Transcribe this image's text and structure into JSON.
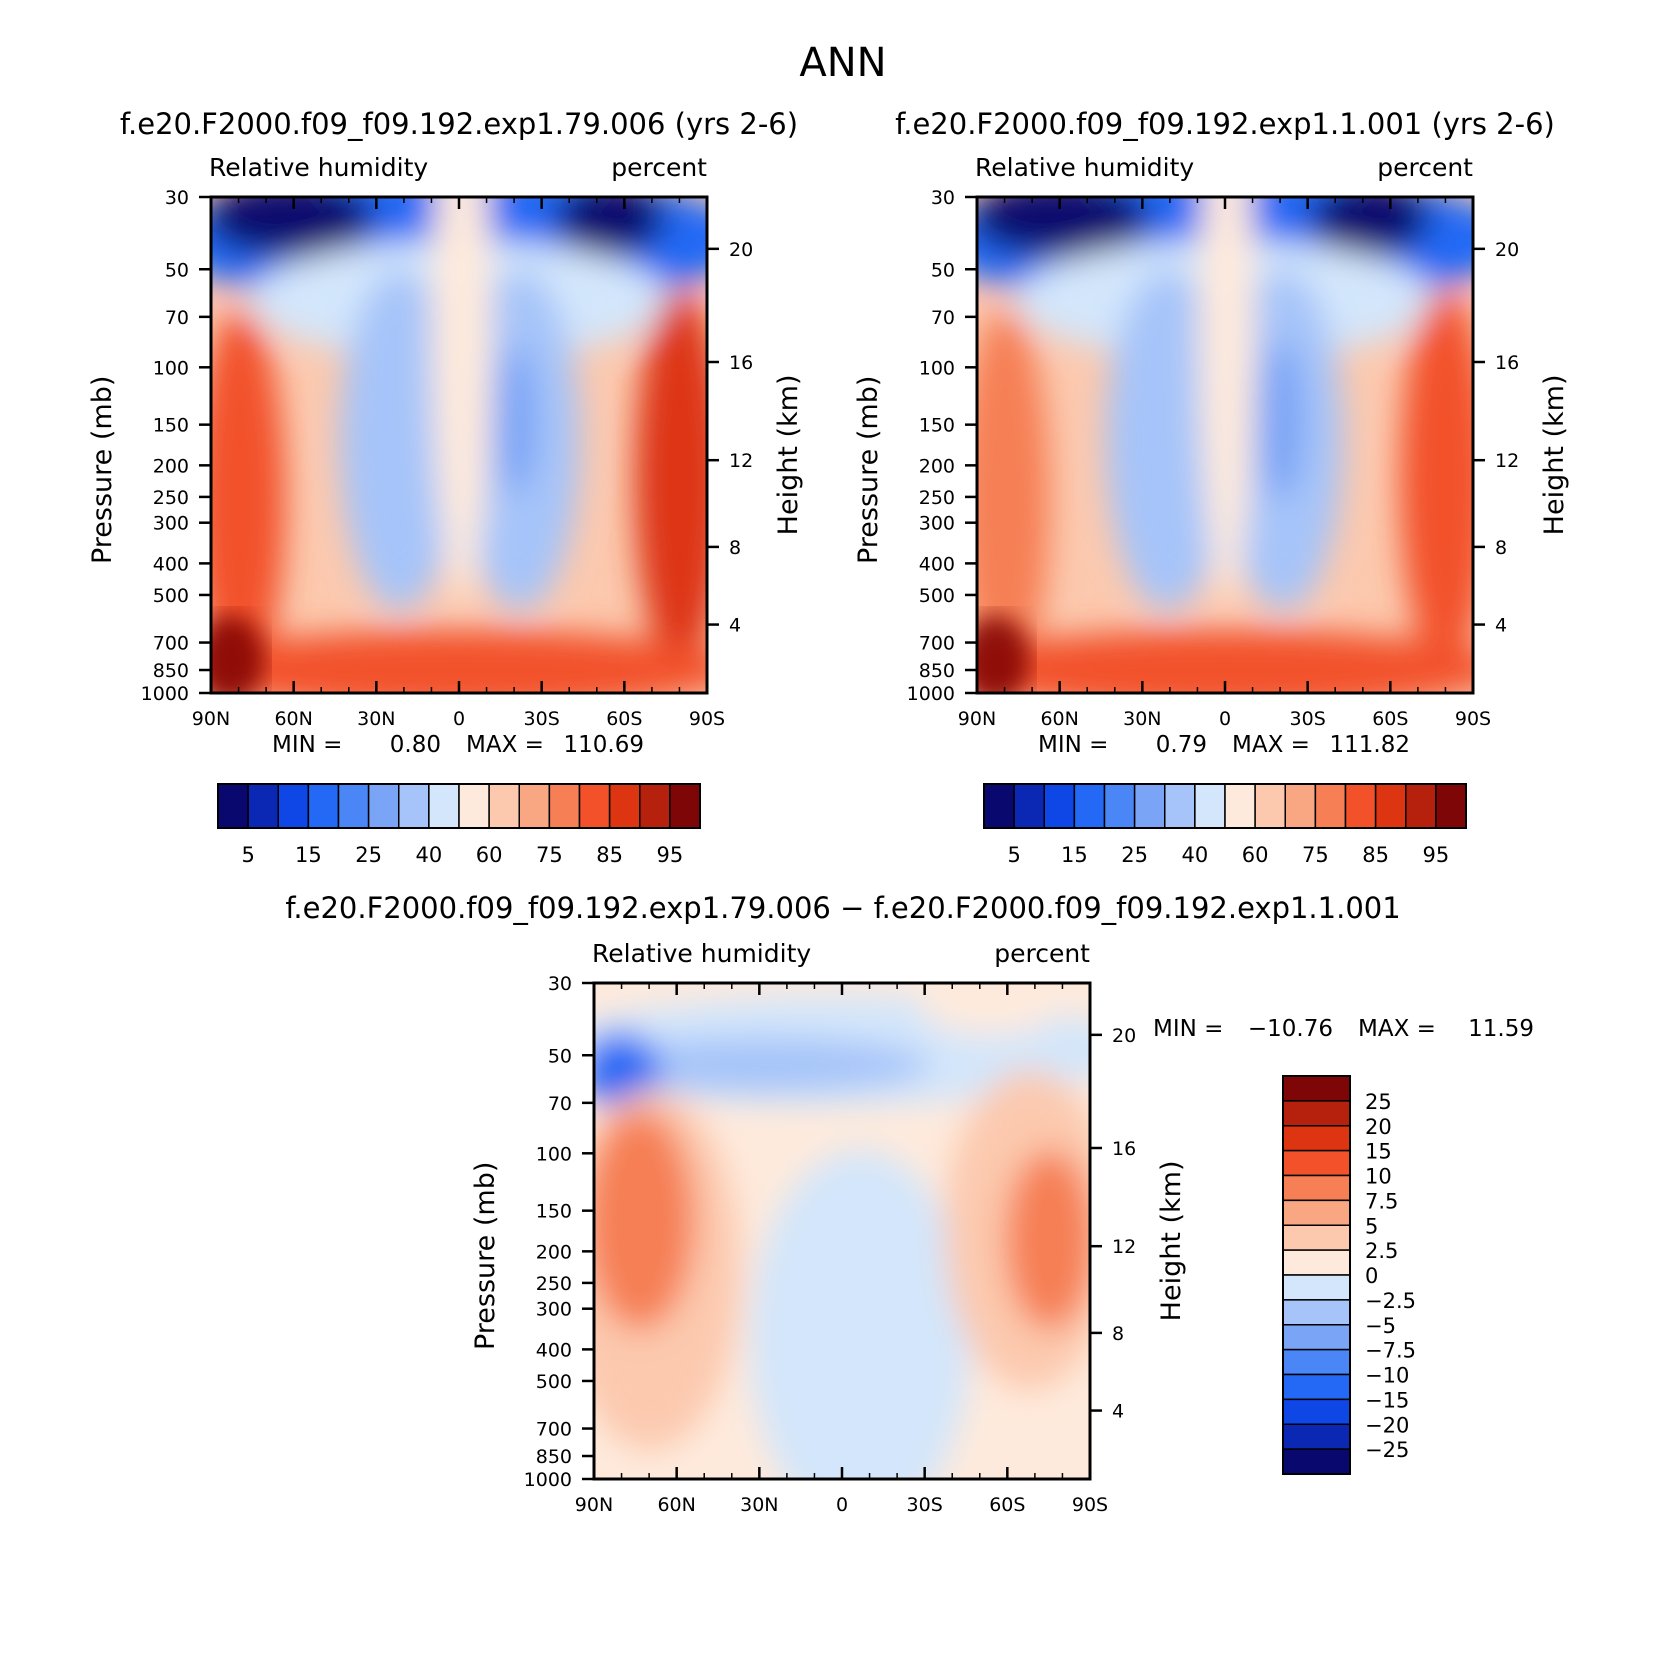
{
  "page_title": "ANN",
  "colors": {
    "rh_levels": [
      "#08086e",
      "#0b28b4",
      "#0f46e6",
      "#2469f5",
      "#4a86f6",
      "#7aa4f6",
      "#a6c4f9",
      "#d3e6fb",
      "#feeadc",
      "#fcc9ae",
      "#f9a683",
      "#f67f55",
      "#f2512a",
      "#dd3412",
      "#b5210c",
      "#7f0606"
    ],
    "diff_levels": [
      "#08086e",
      "#0b28b4",
      "#0f46e6",
      "#2469f5",
      "#4a86f6",
      "#7aa4f6",
      "#a6c4f9",
      "#d3e6fb",
      "#feeadc",
      "#fcc9ae",
      "#f9a683",
      "#f67f55",
      "#f2512a",
      "#dd3412",
      "#b5210c",
      "#7f0606"
    ]
  },
  "chart_data": [
    {
      "type": "contour",
      "title": "f.e20.F2000.f09_f09.192.exp1.79.006 (yrs 2-6)",
      "variable": "Relative humidity",
      "units": "percent",
      "xlabel": "",
      "ylabel": "Pressure (mb)",
      "y2label": "Height (km)",
      "x_ticks": [
        "90N",
        "60N",
        "30N",
        "0",
        "30S",
        "60S",
        "90S"
      ],
      "y_ticks": [
        30,
        50,
        70,
        100,
        150,
        200,
        250,
        300,
        400,
        500,
        700,
        850,
        1000
      ],
      "y2_ticks": [
        20,
        16,
        12,
        8,
        4
      ],
      "min_label": "MIN =",
      "min_value": "0.80",
      "max_label": "MAX =",
      "max_value": "110.69",
      "colorbar_labels": [
        "5",
        "15",
        "25",
        "40",
        "60",
        "75",
        "85",
        "95"
      ],
      "colorbar_levels": [
        0,
        5,
        10,
        15,
        20,
        25,
        30,
        40,
        50,
        60,
        70,
        75,
        80,
        85,
        90,
        95
      ]
    },
    {
      "type": "contour",
      "title": "f.e20.F2000.f09_f09.192.exp1.1.001 (yrs 2-6)",
      "variable": "Relative humidity",
      "units": "percent",
      "xlabel": "",
      "ylabel": "Pressure (mb)",
      "y2label": "Height (km)",
      "x_ticks": [
        "90N",
        "60N",
        "30N",
        "0",
        "30S",
        "60S",
        "90S"
      ],
      "y_ticks": [
        30,
        50,
        70,
        100,
        150,
        200,
        250,
        300,
        400,
        500,
        700,
        850,
        1000
      ],
      "y2_ticks": [
        20,
        16,
        12,
        8,
        4
      ],
      "min_label": "MIN =",
      "min_value": "0.79",
      "max_label": "MAX =",
      "max_value": "111.82",
      "colorbar_labels": [
        "5",
        "15",
        "25",
        "40",
        "60",
        "75",
        "85",
        "95"
      ],
      "colorbar_levels": [
        0,
        5,
        10,
        15,
        20,
        25,
        30,
        40,
        50,
        60,
        70,
        75,
        80,
        85,
        90,
        95
      ]
    },
    {
      "type": "contour",
      "title": "f.e20.F2000.f09_f09.192.exp1.79.006 − f.e20.F2000.f09_f09.192.exp1.1.001",
      "variable": "Relative humidity",
      "units": "percent",
      "xlabel": "",
      "ylabel": "Pressure (mb)",
      "y2label": "Height (km)",
      "x_ticks": [
        "90N",
        "60N",
        "30N",
        "0",
        "30S",
        "60S",
        "90S"
      ],
      "y_ticks": [
        30,
        50,
        70,
        100,
        150,
        200,
        250,
        300,
        400,
        500,
        700,
        850,
        1000
      ],
      "y2_ticks": [
        20,
        16,
        12,
        8,
        4
      ],
      "min_label": "MIN =",
      "min_value": "−10.76",
      "max_label": "MAX =",
      "max_value": "11.59",
      "colorbar_labels": [
        "25",
        "20",
        "15",
        "10",
        "7.5",
        "5",
        "2.5",
        "0",
        "−2.5",
        "−5",
        "−7.5",
        "−10",
        "−15",
        "−20",
        "−25"
      ]
    }
  ]
}
